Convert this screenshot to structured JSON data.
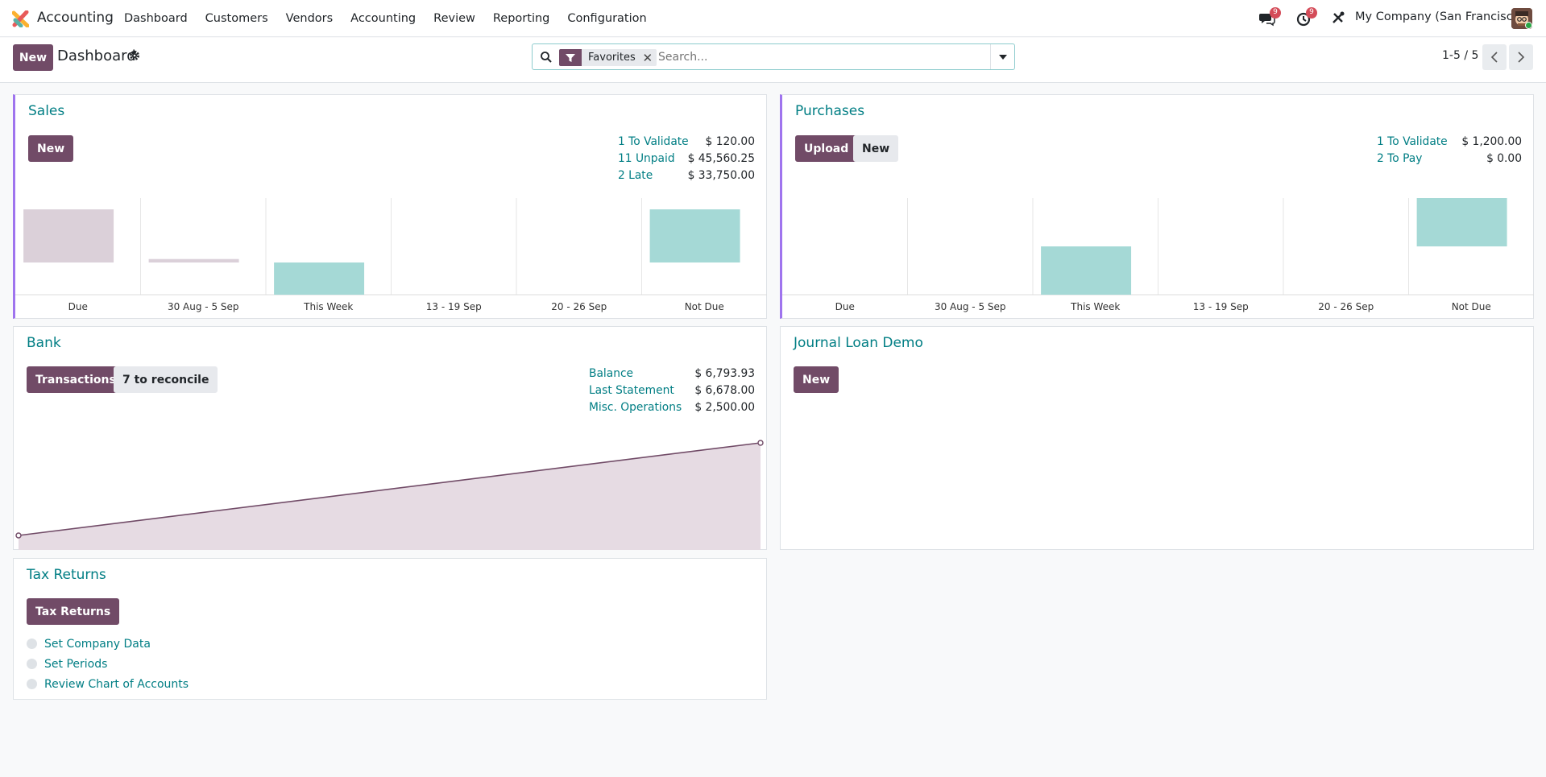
{
  "navbar": {
    "app_name": "Accounting",
    "menu": [
      "Dashboard",
      "Customers",
      "Vendors",
      "Accounting",
      "Review",
      "Reporting",
      "Configuration"
    ],
    "messages_count": "9",
    "activities_count": "9",
    "company": "My Company (San Francisco)"
  },
  "control": {
    "new_label": "New",
    "title": "Dashboard",
    "facet_label": "Favorites",
    "search_placeholder": "Search...",
    "pager": "1-5 / 5"
  },
  "sales": {
    "title": "Sales",
    "new_label": "New",
    "stats": [
      {
        "label": "1 To Validate",
        "value": "$ 120.00"
      },
      {
        "label": "11 Unpaid",
        "value": "$ 45,560.25"
      },
      {
        "label": "2 Late",
        "value": "$ 33,750.00"
      }
    ],
    "chart_data": {
      "type": "bar",
      "categories": [
        "Due",
        "30 Aug - 5 Sep",
        "This Week",
        "13 - 19 Sep",
        "20 - 26 Sep",
        "Not Due"
      ],
      "series": [
        {
          "values": [
            -33750,
            -2200,
            20000,
            0,
            0,
            -33750
          ]
        }
      ],
      "past_color": "#dbd0d9",
      "future_color": "#a5d9d6"
    }
  },
  "purchases": {
    "title": "Purchases",
    "upload_label": "Upload",
    "new_label": "New",
    "stats": [
      {
        "label": "1 To Validate",
        "value": "$ 1,200.00"
      },
      {
        "label": "2 To Pay",
        "value": "$ 0.00"
      }
    ],
    "chart_data": {
      "type": "bar",
      "categories": [
        "Due",
        "30 Aug - 5 Sep",
        "This Week",
        "13 - 19 Sep",
        "20 - 26 Sep",
        "Not Due"
      ],
      "series": [
        {
          "values": [
            0,
            0,
            1200,
            0,
            0,
            -1200
          ]
        }
      ],
      "future_color": "#a5d9d6"
    }
  },
  "bank": {
    "title": "Bank",
    "transactions_label": "Transactions",
    "reconcile_label": "7 to reconcile",
    "stats": [
      {
        "label": "Balance",
        "value": "$ 6,793.93"
      },
      {
        "label": "Last Statement",
        "value": "$ 6,678.00"
      },
      {
        "label": "Misc. Operations",
        "value": "$ 2,500.00"
      }
    ],
    "chart_data": {
      "type": "area",
      "values": [
        0,
        6793.93
      ],
      "line_color": "#714b67",
      "fill_color": "#e6dbe3"
    }
  },
  "journal_loan": {
    "title": "Journal Loan Demo",
    "new_label": "New"
  },
  "tax_returns": {
    "title": "Tax Returns",
    "button_label": "Tax Returns",
    "steps": [
      "Set Company Data",
      "Set Periods",
      "Review Chart of Accounts"
    ]
  }
}
